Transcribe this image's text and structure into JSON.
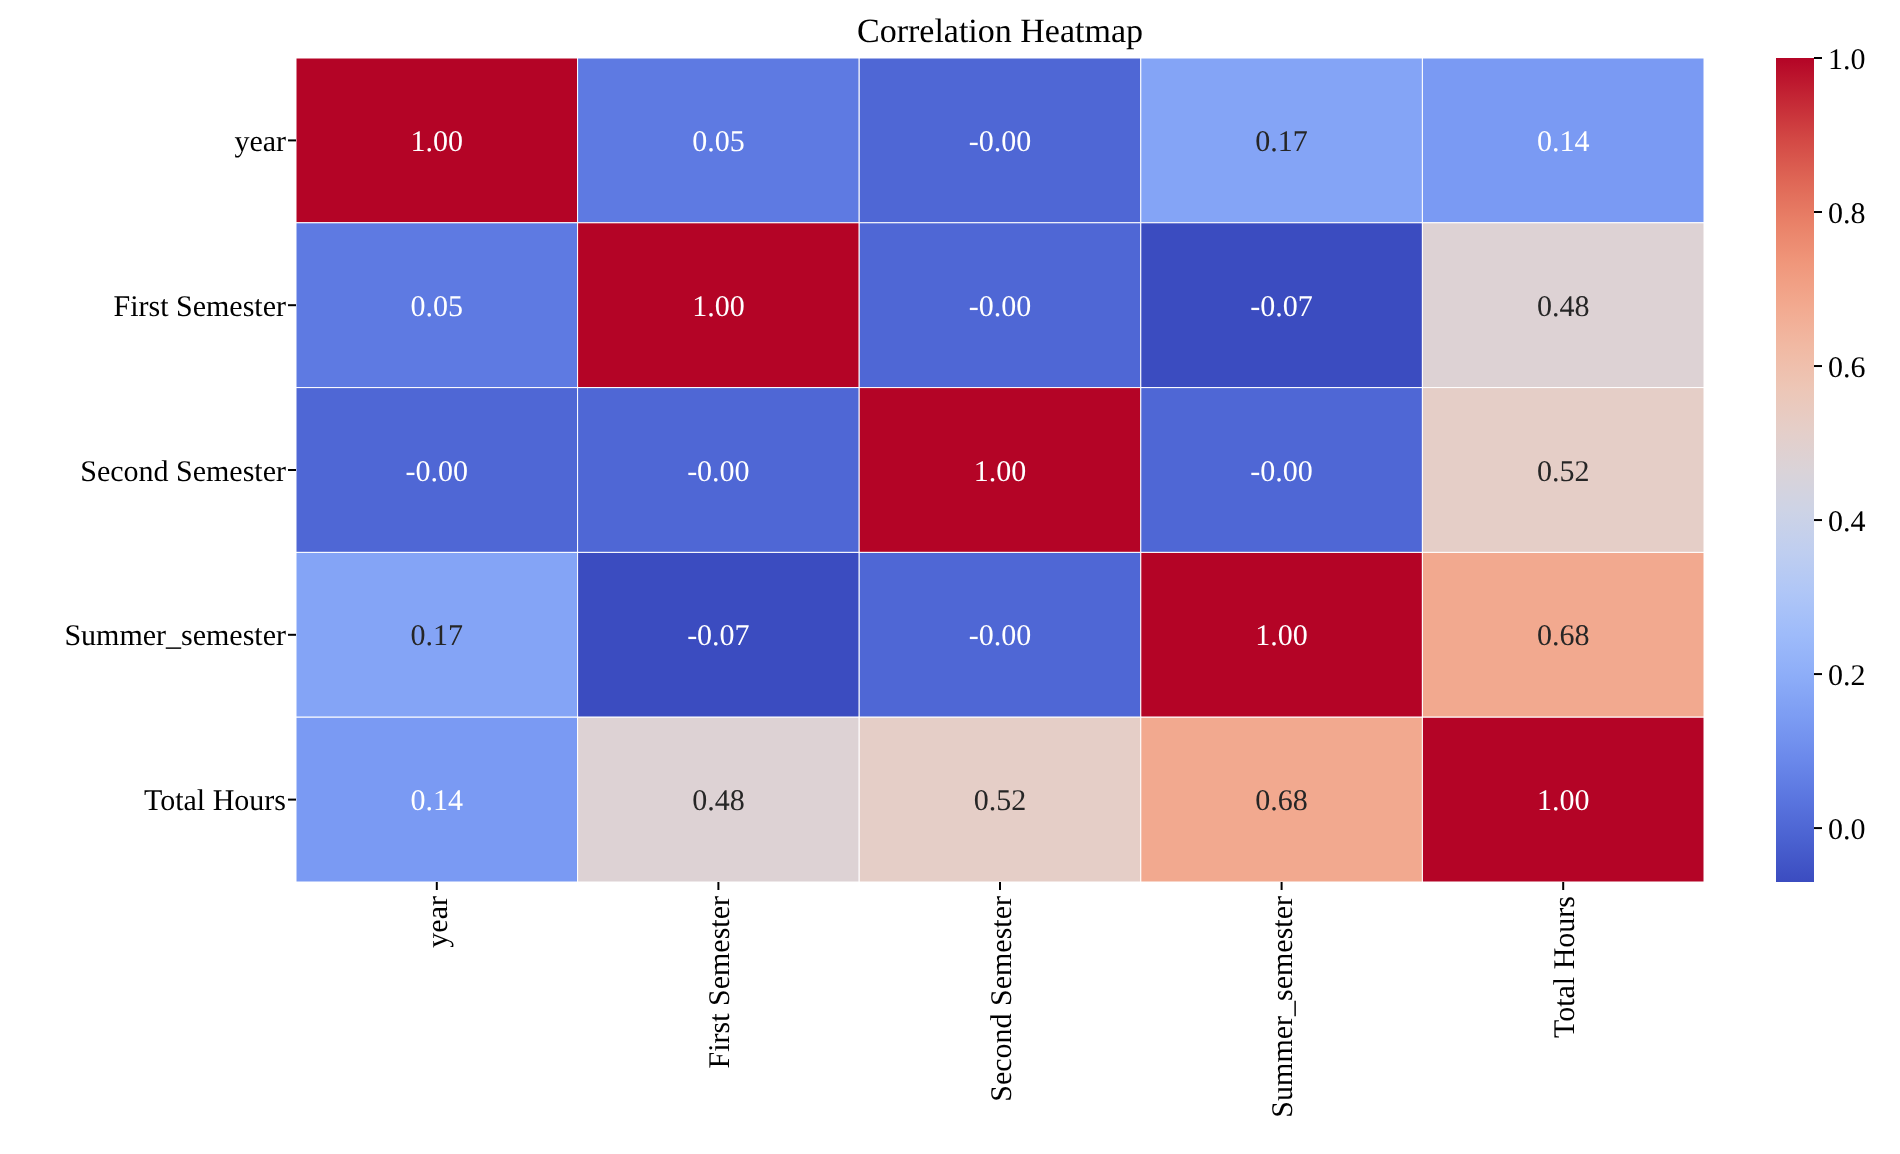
{
  "chart_data": {
    "type": "heatmap",
    "title": "Correlation Heatmap",
    "categories": [
      "year",
      "First Semester",
      "Second Semester",
      "Summer_semester",
      "Total Hours"
    ],
    "y_categories": [
      "year",
      "First Semester",
      "Second Semester",
      "Summer_semester",
      "Total Hours"
    ],
    "cells": [
      [
        1.0,
        0.05,
        -0.0,
        0.17,
        0.14
      ],
      [
        0.05,
        1.0,
        -0.0,
        -0.07,
        0.48
      ],
      [
        -0.0,
        -0.0,
        1.0,
        -0.0,
        0.52
      ],
      [
        0.17,
        -0.07,
        -0.0,
        1.0,
        0.68
      ],
      [
        0.14,
        0.48,
        0.52,
        0.68,
        1.0
      ]
    ],
    "cell_labels": [
      [
        "1.00",
        "0.05",
        "-0.00",
        "0.17",
        "0.14"
      ],
      [
        "0.05",
        "1.00",
        "-0.00",
        "-0.07",
        "0.48"
      ],
      [
        "-0.00",
        "-0.00",
        "1.00",
        "-0.00",
        "0.52"
      ],
      [
        "0.17",
        "-0.07",
        "-0.00",
        "1.00",
        "0.68"
      ],
      [
        "0.14",
        "0.48",
        "0.52",
        "0.68",
        "1.00"
      ]
    ],
    "clim": [
      -0.07,
      1.0
    ],
    "cticks": [
      {
        "value": 0,
        "label": "0.0"
      },
      {
        "value": 0.2,
        "label": "0.2"
      },
      {
        "value": 0.4,
        "label": "0.4"
      },
      {
        "value": 0.6,
        "label": "0.6"
      },
      {
        "value": 0.8,
        "label": "0.8"
      },
      {
        "value": 1,
        "label": "1.0"
      }
    ]
  }
}
